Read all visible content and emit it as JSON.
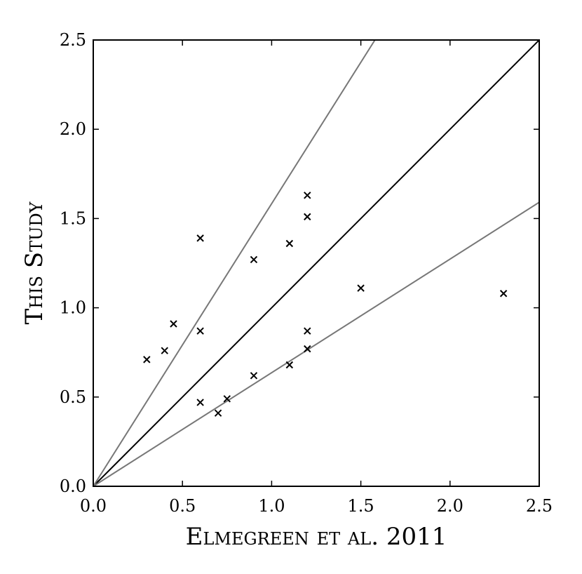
{
  "chart_data": {
    "type": "scatter",
    "title": "",
    "xlabel": "Elmegreen et al. 2011",
    "ylabel": "This Study",
    "xlim": [
      0.0,
      2.5
    ],
    "ylim": [
      0.0,
      2.5
    ],
    "x_ticks": [
      "0.0",
      "0.5",
      "1.0",
      "1.5",
      "2.0",
      "2.5"
    ],
    "y_ticks": [
      "0.0",
      "0.5",
      "1.0",
      "1.5",
      "2.0",
      "2.5"
    ],
    "grid": false,
    "legend": "none",
    "marker": "x",
    "marker_color": "#000000",
    "points": [
      {
        "x": 0.3,
        "y": 0.71
      },
      {
        "x": 0.4,
        "y": 0.76
      },
      {
        "x": 0.45,
        "y": 0.91
      },
      {
        "x": 0.6,
        "y": 1.39
      },
      {
        "x": 0.6,
        "y": 0.87
      },
      {
        "x": 0.6,
        "y": 0.47
      },
      {
        "x": 0.7,
        "y": 0.41
      },
      {
        "x": 0.75,
        "y": 0.49
      },
      {
        "x": 0.9,
        "y": 1.27
      },
      {
        "x": 0.9,
        "y": 0.62
      },
      {
        "x": 1.1,
        "y": 1.36
      },
      {
        "x": 1.1,
        "y": 0.68
      },
      {
        "x": 1.2,
        "y": 1.63
      },
      {
        "x": 1.2,
        "y": 1.51
      },
      {
        "x": 1.2,
        "y": 0.87
      },
      {
        "x": 1.2,
        "y": 0.77
      },
      {
        "x": 1.5,
        "y": 1.11
      },
      {
        "x": 2.3,
        "y": 1.08
      }
    ],
    "reference_lines": [
      {
        "slope": 1.0,
        "color": "#000000"
      },
      {
        "slope": 1.5833,
        "color": "#777777"
      },
      {
        "slope": 0.6364,
        "color": "#777777"
      }
    ]
  }
}
